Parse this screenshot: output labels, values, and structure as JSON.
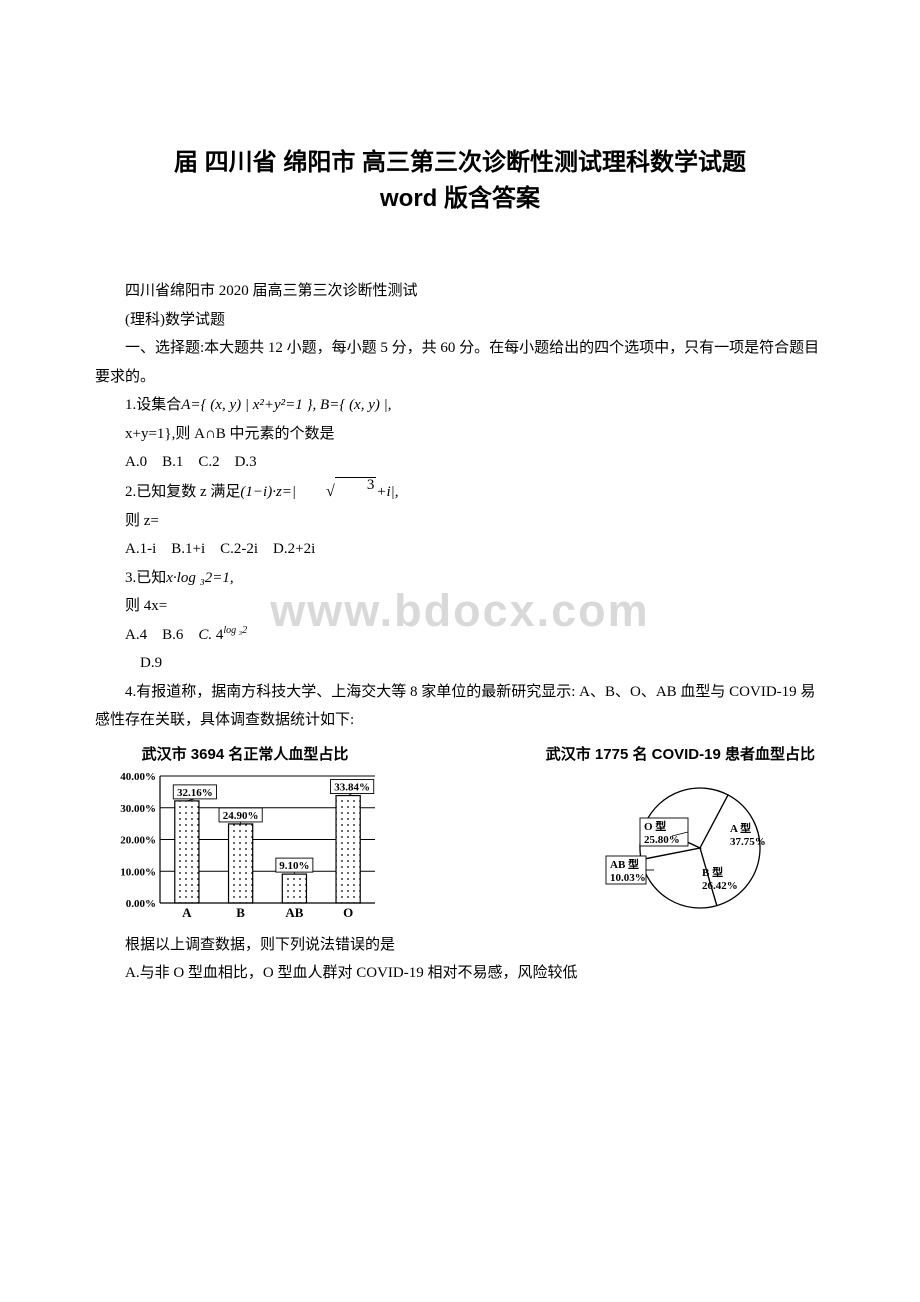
{
  "title_line1": "届 四川省 绵阳市 高三第三次诊断性测试理科数学试题",
  "title_line2": "word 版含答案",
  "watermark": "www.bdocx.com",
  "p_intro1": "四川省绵阳市 2020 届高三第三次诊断性测试",
  "p_intro2": "(理科)数学试题",
  "p_section": "一、选择题:本大题共 12 小题，每小题 5 分，共 60 分。在每小题给出的四个选项中，只有一项是符合题目要求的。",
  "q1_prefix": "1.设集合",
  "q1_math": "A={ (x, y) | x²+y²=1 }, B={ (x, y) |,",
  "q1_line2": "x+y=1},则 A∩B 中元素的个数是",
  "q1_opts": "A.0 B.1 C.2 D.3",
  "q2_prefix": "2.已知复数 z 满足",
  "q2_math_left": "(1−i)·z=|",
  "q2_sqrt_arg": "3",
  "q2_math_right": "+i|,",
  "q2_line2": "则 z=",
  "q2_opts": "A.1-i B.1+i C.2-2i D.2+2i",
  "q3_prefix": "3.已知",
  "q3_math": "x·log ₃2=1,",
  "q3_line2": "则 4x=",
  "q3_opts_ab": "A.4 B.6 ",
  "q3_optC_label": "C.",
  "q3_optC_base": "4",
  "q3_optC_sup": "log ₃2",
  "q3_optD": "D.9",
  "q4_text": "4.有报道称，据南方科技大学、上海交大等 8 家单位的最新研究显示: A、B、O、AB 血型与 COVID-19 易感性存在关联，具体调查数据统计如下:",
  "bar_chart": {
    "title": "武汉市 3694 名正常人血型占比",
    "y_ticks": [
      "0.00%",
      "10.00%",
      "20.00%",
      "30.00%",
      "40.00%"
    ],
    "y_max": 40,
    "categories": [
      "A",
      "B",
      "AB",
      "O"
    ],
    "values": [
      32.16,
      24.9,
      9.1,
      33.84
    ],
    "value_labels": [
      "32.16%",
      "24.90%",
      "9.10%",
      "33.84%"
    ],
    "bar_fill": "#ffffff",
    "bar_stroke": "#000000",
    "bar_hatch": true,
    "grid_color": "#000000",
    "label_fill": "#ffffff",
    "label_fontsize": 11
  },
  "pie_chart": {
    "title": "武汉市 1775 名 COVID-19 患者血型占比",
    "slices": [
      {
        "label": "O 型",
        "value": 25.8,
        "text": "O 型\n25.80%"
      },
      {
        "label": "A 型",
        "value": 37.75,
        "text": "A 型\n37.75%"
      },
      {
        "label": "B 型",
        "value": 26.42,
        "text": "B 型\n26.42%"
      },
      {
        "label": "AB 型",
        "value": 10.03,
        "text": "AB 型\n10.03%"
      }
    ],
    "stroke": "#000000",
    "fill": "#ffffff"
  },
  "q4_followup": "根据以上调查数据，则下列说法错误的是",
  "q4_optA": "A.与非 O 型血相比，O 型血人群对 COVID-19 相对不易感，风险较低"
}
